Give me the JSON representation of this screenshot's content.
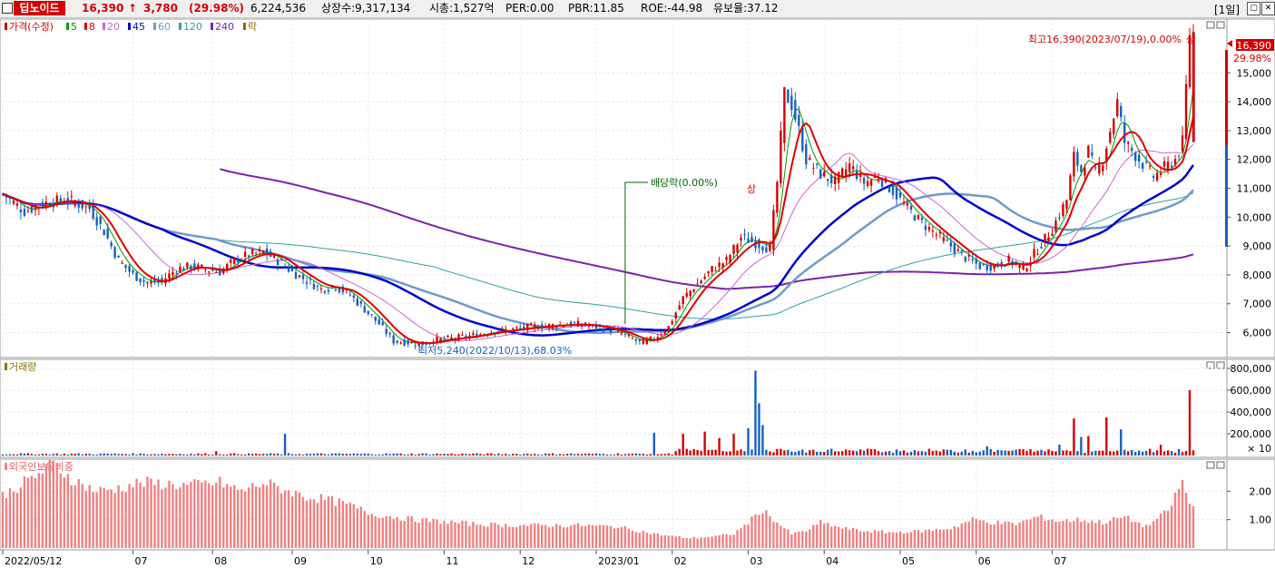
{
  "header": {
    "stock_name": "딥노이드",
    "price": "16,390",
    "change_arrow": "↑",
    "change": "3,780",
    "change_pct": "(29.98%)",
    "volume": "6,224,536",
    "shares": "상장수:9,317,134",
    "market_cap": "시총:1,527억",
    "per": "PER:0.00",
    "pbr": "PBR:11.85",
    "roe": "ROE:-44.98",
    "float_ratio": "유보율:37.12",
    "period": "[1일]"
  },
  "colors": {
    "up": "#d40000",
    "down": "#1560bd",
    "ma5": "#009900",
    "ma8": "#e00000",
    "ma20": "#cc66cc",
    "ma45": "#0000cc",
    "ma60": "#6f9ac8",
    "ma120": "#30a0a0",
    "ma240": "#7b22b0"
  },
  "chart_data": [
    {
      "type": "candlestick",
      "panel": "price",
      "legend": [
        "가격(수정)",
        "5",
        "8",
        "20",
        "45",
        "60",
        "120",
        "240",
        "락"
      ],
      "y_ticks": [
        "15,000",
        "14,000",
        "13,000",
        "12,000",
        "11,000",
        "10,000",
        "9,000",
        "8,000",
        "7,000",
        "6,000"
      ],
      "ylim": [
        5200,
        16800
      ],
      "x_labels": [
        "2022/05/12",
        "07",
        "08",
        "09",
        "10",
        "11",
        "12",
        "2023/01",
        "02",
        "03",
        "04",
        "05",
        "06",
        "07"
      ],
      "current_price_label": "16,390",
      "current_pct_label": "29.98%",
      "annotations": {
        "high": "최고16,390(2023/07/19),0.00%",
        "low": "최저5,240(2022/10/13),68.03%",
        "dividend": "배당락(0.00%)",
        "limit_up": "상"
      },
      "close_path": [
        [
          0,
          10800
        ],
        [
          6,
          10200
        ],
        [
          12,
          10500
        ],
        [
          18,
          10600
        ],
        [
          24,
          10300
        ],
        [
          28,
          9500
        ],
        [
          32,
          8500
        ],
        [
          36,
          8000
        ],
        [
          40,
          7700
        ],
        [
          44,
          7800
        ],
        [
          48,
          8200
        ],
        [
          52,
          8300
        ],
        [
          56,
          8200
        ],
        [
          60,
          8100
        ],
        [
          64,
          8500
        ],
        [
          68,
          8700
        ],
        [
          72,
          8800
        ],
        [
          76,
          8500
        ],
        [
          80,
          8100
        ],
        [
          84,
          7800
        ],
        [
          88,
          7500
        ],
        [
          92,
          7600
        ],
        [
          96,
          7300
        ],
        [
          100,
          6800
        ],
        [
          104,
          6300
        ],
        [
          108,
          5700
        ],
        [
          112,
          5650
        ],
        [
          116,
          5600
        ],
        [
          120,
          5750
        ],
        [
          124,
          5800
        ],
        [
          130,
          5900
        ],
        [
          136,
          6050
        ],
        [
          140,
          6100
        ],
        [
          146,
          6200
        ],
        [
          152,
          6250
        ],
        [
          158,
          6300
        ],
        [
          164,
          6200
        ],
        [
          168,
          6100
        ],
        [
          172,
          5900
        ],
        [
          176,
          5650
        ],
        [
          180,
          5800
        ],
        [
          184,
          6200
        ],
        [
          188,
          7200
        ],
        [
          192,
          7700
        ],
        [
          196,
          8200
        ],
        [
          200,
          8500
        ],
        [
          204,
          9300
        ],
        [
          208,
          9100
        ],
        [
          212,
          8900
        ],
        [
          214,
          11200
        ],
        [
          216,
          14300
        ],
        [
          218,
          13900
        ],
        [
          220,
          13000
        ],
        [
          222,
          12000
        ],
        [
          226,
          11500
        ],
        [
          230,
          11200
        ],
        [
          234,
          11800
        ],
        [
          238,
          11200
        ],
        [
          242,
          11400
        ],
        [
          246,
          10900
        ],
        [
          250,
          10300
        ],
        [
          254,
          9800
        ],
        [
          258,
          9400
        ],
        [
          262,
          9000
        ],
        [
          266,
          8600
        ],
        [
          270,
          8300
        ],
        [
          274,
          8300
        ],
        [
          278,
          8500
        ],
        [
          282,
          8200
        ],
        [
          286,
          8900
        ],
        [
          290,
          9600
        ],
        [
          294,
          10600
        ],
        [
          296,
          12100
        ],
        [
          298,
          11600
        ],
        [
          300,
          12300
        ],
        [
          302,
          11500
        ],
        [
          304,
          12000
        ],
        [
          306,
          13000
        ],
        [
          308,
          14000
        ],
        [
          310,
          12600
        ],
        [
          314,
          12000
        ],
        [
          318,
          11400
        ],
        [
          320,
          11600
        ],
        [
          324,
          12000
        ],
        [
          326,
          12600
        ],
        [
          328,
          16390
        ]
      ],
      "volume_panel": {
        "legend": "거래량",
        "y_ticks": [
          "800,000",
          "600,000",
          "400,000",
          "200,000"
        ],
        "unit": "× 10",
        "ylim": [
          0,
          850000
        ],
        "spikes": [
          [
            59,
            40000
          ],
          [
            78,
            200000
          ],
          [
            180,
            210000
          ],
          [
            188,
            200000
          ],
          [
            194,
            220000
          ],
          [
            198,
            160000
          ],
          [
            202,
            200000
          ],
          [
            206,
            250000
          ],
          [
            208,
            780000
          ],
          [
            209,
            480000
          ],
          [
            210,
            280000
          ],
          [
            214,
            60000
          ],
          [
            272,
            85000
          ],
          [
            292,
            100000
          ],
          [
            296,
            340000
          ],
          [
            298,
            170000
          ],
          [
            300,
            180000
          ],
          [
            305,
            350000
          ],
          [
            309,
            240000
          ],
          [
            320,
            100000
          ],
          [
            328,
            600000
          ]
        ]
      },
      "foreign_panel": {
        "legend": "외국인보유비중",
        "y_ticks": [
          "2.00",
          "1.00"
        ],
        "ylim": [
          0,
          3.0
        ],
        "path": [
          [
            0,
            1.85
          ],
          [
            8,
            2.45
          ],
          [
            14,
            2.95
          ],
          [
            20,
            2.35
          ],
          [
            26,
            2.0
          ],
          [
            32,
            2.1
          ],
          [
            38,
            2.3
          ],
          [
            46,
            2.25
          ],
          [
            52,
            2.2
          ],
          [
            60,
            2.3
          ],
          [
            66,
            2.0
          ],
          [
            72,
            2.3
          ],
          [
            78,
            2.05
          ],
          [
            84,
            1.8
          ],
          [
            90,
            1.7
          ],
          [
            96,
            1.5
          ],
          [
            102,
            1.2
          ],
          [
            108,
            1.1
          ],
          [
            114,
            1.0
          ],
          [
            120,
            0.95
          ],
          [
            130,
            0.85
          ],
          [
            140,
            0.8
          ],
          [
            150,
            0.8
          ],
          [
            160,
            0.8
          ],
          [
            170,
            0.75
          ],
          [
            176,
            0.6
          ],
          [
            180,
            0.5
          ],
          [
            186,
            0.4
          ],
          [
            190,
            0.35
          ],
          [
            196,
            0.4
          ],
          [
            202,
            0.5
          ],
          [
            206,
            0.9
          ],
          [
            210,
            1.35
          ],
          [
            214,
            0.9
          ],
          [
            218,
            0.5
          ],
          [
            222,
            0.6
          ],
          [
            226,
            0.9
          ],
          [
            232,
            0.7
          ],
          [
            238,
            0.6
          ],
          [
            246,
            0.55
          ],
          [
            254,
            0.6
          ],
          [
            262,
            0.7
          ],
          [
            268,
            1.0
          ],
          [
            274,
            0.9
          ],
          [
            280,
            0.85
          ],
          [
            286,
            1.1
          ],
          [
            292,
            0.95
          ],
          [
            298,
            1.0
          ],
          [
            304,
            0.9
          ],
          [
            310,
            1.1
          ],
          [
            316,
            0.75
          ],
          [
            322,
            1.3
          ],
          [
            326,
            2.35
          ],
          [
            328,
            1.5
          ]
        ]
      }
    }
  ]
}
